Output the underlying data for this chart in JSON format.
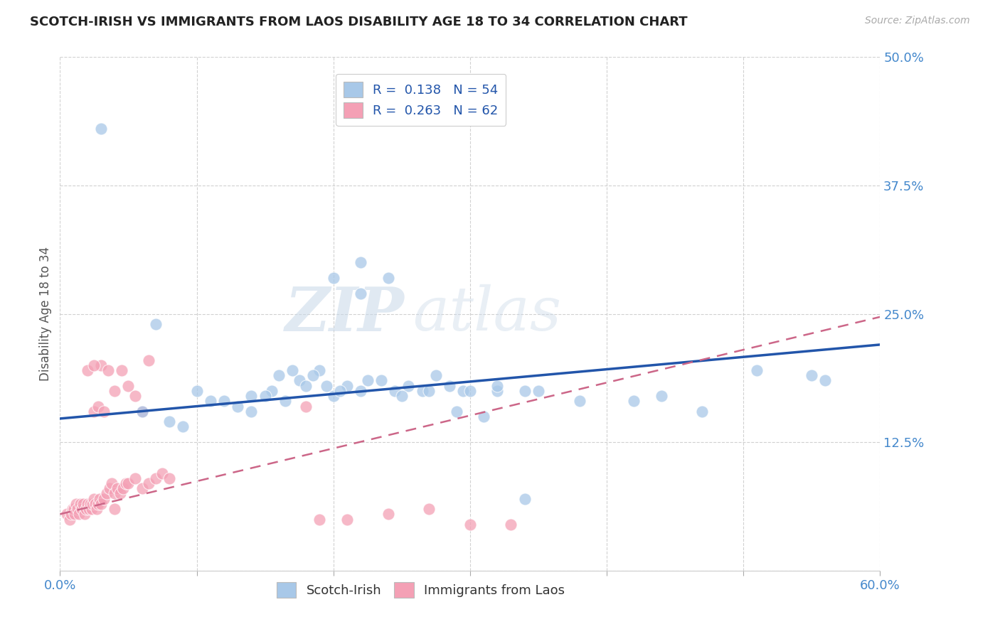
{
  "title": "SCOTCH-IRISH VS IMMIGRANTS FROM LAOS DISABILITY AGE 18 TO 34 CORRELATION CHART",
  "source": "Source: ZipAtlas.com",
  "ylabel": "Disability Age 18 to 34",
  "xlim": [
    0.0,
    0.6
  ],
  "ylim": [
    0.0,
    0.5
  ],
  "xticks": [
    0.0,
    0.1,
    0.2,
    0.3,
    0.4,
    0.5,
    0.6
  ],
  "yticks": [
    0.0,
    0.125,
    0.25,
    0.375,
    0.5
  ],
  "ytick_labels": [
    "",
    "12.5%",
    "25.0%",
    "37.5%",
    "50.0%"
  ],
  "xtick_labels": [
    "0.0%",
    "",
    "",
    "",
    "",
    "",
    "60.0%"
  ],
  "legend_r1": "0.138",
  "legend_n1": "54",
  "legend_r2": "0.263",
  "legend_n2": "62",
  "color_blue": "#a8c8e8",
  "color_pink": "#f4a0b5",
  "trendline_blue": "#2255aa",
  "trendline_pink": "#cc6688",
  "background": "#ffffff",
  "grid_color": "#cccccc",
  "watermark_zip": "ZIP",
  "watermark_atlas": "atlas",
  "label_color": "#4488cc",
  "tick_color": "#4488cc",
  "scotch_irish_x": [
    0.2,
    0.22,
    0.22,
    0.24,
    0.03,
    0.07,
    0.11,
    0.13,
    0.14,
    0.155,
    0.165,
    0.175,
    0.19,
    0.2,
    0.21,
    0.22,
    0.225,
    0.235,
    0.245,
    0.255,
    0.265,
    0.275,
    0.285,
    0.295,
    0.185,
    0.195,
    0.205,
    0.32,
    0.34,
    0.38,
    0.42,
    0.44,
    0.47,
    0.51,
    0.55,
    0.56,
    0.3,
    0.32,
    0.35,
    0.1,
    0.12,
    0.14,
    0.15,
    0.16,
    0.17,
    0.18,
    0.25,
    0.27,
    0.29,
    0.31,
    0.34,
    0.08,
    0.09,
    0.06
  ],
  "scotch_irish_y": [
    0.285,
    0.27,
    0.3,
    0.285,
    0.43,
    0.24,
    0.165,
    0.16,
    0.155,
    0.175,
    0.165,
    0.185,
    0.195,
    0.17,
    0.18,
    0.175,
    0.185,
    0.185,
    0.175,
    0.18,
    0.175,
    0.19,
    0.18,
    0.175,
    0.19,
    0.18,
    0.175,
    0.175,
    0.175,
    0.165,
    0.165,
    0.17,
    0.155,
    0.195,
    0.19,
    0.185,
    0.175,
    0.18,
    0.175,
    0.175,
    0.165,
    0.17,
    0.17,
    0.19,
    0.195,
    0.18,
    0.17,
    0.175,
    0.155,
    0.15,
    0.07,
    0.145,
    0.14,
    0.155
  ],
  "laos_x": [
    0.005,
    0.007,
    0.008,
    0.009,
    0.01,
    0.011,
    0.012,
    0.013,
    0.014,
    0.015,
    0.016,
    0.017,
    0.018,
    0.019,
    0.02,
    0.021,
    0.022,
    0.023,
    0.024,
    0.025,
    0.026,
    0.027,
    0.028,
    0.029,
    0.03,
    0.032,
    0.034,
    0.036,
    0.038,
    0.04,
    0.042,
    0.044,
    0.046,
    0.048,
    0.05,
    0.055,
    0.06,
    0.065,
    0.07,
    0.075,
    0.08,
    0.03,
    0.035,
    0.04,
    0.045,
    0.05,
    0.055,
    0.06,
    0.065,
    0.025,
    0.028,
    0.032,
    0.19,
    0.21,
    0.24,
    0.27,
    0.3,
    0.33,
    0.18,
    0.02,
    0.025,
    0.04
  ],
  "laos_y": [
    0.055,
    0.05,
    0.055,
    0.06,
    0.06,
    0.055,
    0.065,
    0.06,
    0.055,
    0.065,
    0.06,
    0.065,
    0.055,
    0.06,
    0.065,
    0.06,
    0.065,
    0.06,
    0.065,
    0.07,
    0.065,
    0.06,
    0.065,
    0.07,
    0.065,
    0.07,
    0.075,
    0.08,
    0.085,
    0.075,
    0.08,
    0.075,
    0.08,
    0.085,
    0.085,
    0.09,
    0.08,
    0.085,
    0.09,
    0.095,
    0.09,
    0.2,
    0.195,
    0.175,
    0.195,
    0.18,
    0.17,
    0.155,
    0.205,
    0.155,
    0.16,
    0.155,
    0.05,
    0.05,
    0.055,
    0.06,
    0.045,
    0.045,
    0.16,
    0.195,
    0.2,
    0.06
  ]
}
